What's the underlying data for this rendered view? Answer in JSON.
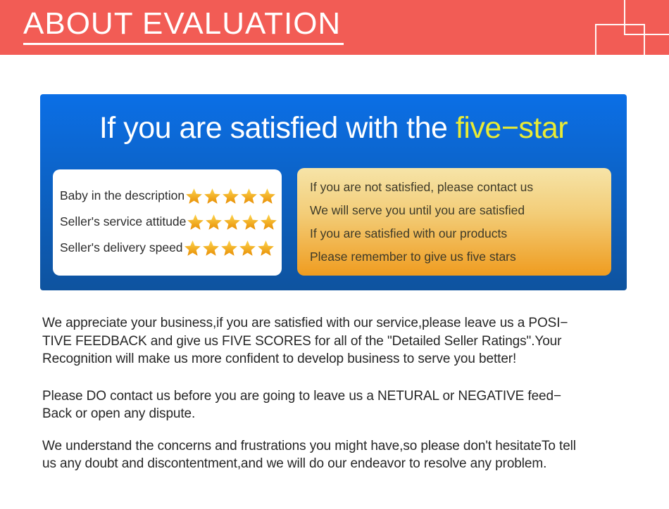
{
  "colors": {
    "header_red": "#f25c55",
    "panel_blue_top": "#0b6fe6",
    "panel_blue_bottom": "#0e539f",
    "title_yellow": "#e9eb34",
    "notice_top": "#f6e4a8",
    "notice_bottom": "#ef9c20",
    "notice_text": "#3e3a28",
    "card_text": "#2b2b2b",
    "body_text": "#262626",
    "star_top": "#fdd44c",
    "star_bottom": "#e88f05"
  },
  "header": {
    "title": "ABOUT EVALUATION"
  },
  "panel": {
    "title_white": "If you are satisfied with the",
    "title_highlight": "five−star",
    "ratings": [
      {
        "label": "Baby in the description",
        "stars": 5
      },
      {
        "label": "Seller's service attitude",
        "stars": 5
      },
      {
        "label": "Seller's delivery speed",
        "stars": 5
      }
    ],
    "notice": {
      "lines": [
        "If you are not satisfied, please contact us",
        "We will serve you until you are satisfied",
        "If you are satisfied with our products",
        "Please remember to give us five stars"
      ]
    }
  },
  "body": {
    "paragraphs": [
      {
        "lines": [
          "We appreciate your business,if you are satisfied with our service,please leave us a POSI−",
          "TIVE FEEDBACK and give us FIVE SCORES for all of the \"Detailed Seller Ratings\".Your",
          "Recognition will make us more confident to develop business to serve you better!"
        ]
      },
      {
        "lines": [
          "Please DO contact us before you are going to leave us a NETURAL or NEGATIVE feed−",
          "Back or open any dispute."
        ]
      },
      {
        "lines": [
          "We understand the concerns and frustrations you might have,so please don't hesitateTo tell",
          "us any doubt and discontentment,and we will do our endeavor to resolve any problem."
        ]
      }
    ]
  }
}
